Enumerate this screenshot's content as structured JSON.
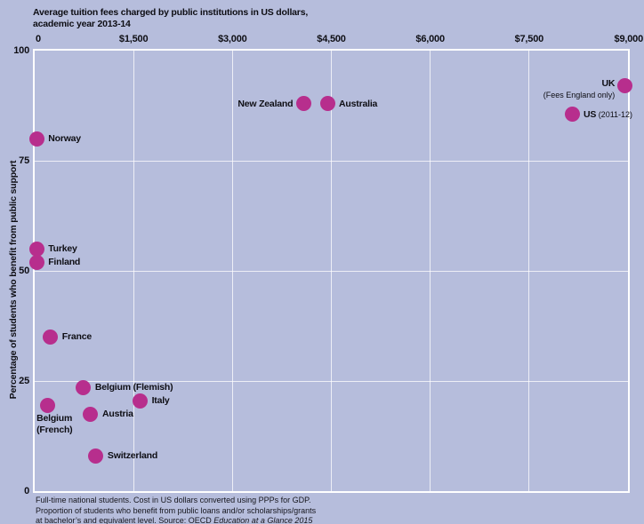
{
  "title": {
    "line1": "Average tuition fees charged by public institutions in US dollars,",
    "line2": "academic year 2013-14"
  },
  "colors": {
    "background": "#b6bddc",
    "dot": "#b72e8d",
    "gridline": "#ffffff",
    "text": "#0e0e14"
  },
  "chart_data": {
    "type": "scatter",
    "title": "Average tuition fees charged by public institutions in US dollars, academic year 2013-14",
    "xlabel": "Average tuition fees charged by public institutions in US dollars",
    "ylabel": "Percentage of students who benefit from public support",
    "xlim": [
      0,
      9000
    ],
    "ylim": [
      0,
      100
    ],
    "grid": true,
    "x_ticks": [
      {
        "value": 0,
        "label": "0",
        "align": "left"
      },
      {
        "value": 1500,
        "label": "$1,500",
        "align": "center"
      },
      {
        "value": 3000,
        "label": "$3,000",
        "align": "center"
      },
      {
        "value": 4500,
        "label": "$4,500",
        "align": "center"
      },
      {
        "value": 6000,
        "label": "$6,000",
        "align": "center"
      },
      {
        "value": 7500,
        "label": "$7,500",
        "align": "center"
      },
      {
        "value": 9000,
        "label": "$9,000",
        "align": "right"
      }
    ],
    "y_ticks": [
      {
        "value": 100,
        "label": "100"
      },
      {
        "value": 75,
        "label": "75"
      },
      {
        "value": 50,
        "label": "50"
      },
      {
        "value": 25,
        "label": "25"
      },
      {
        "value": 0,
        "label": "0"
      }
    ],
    "points": [
      {
        "name": "UK",
        "fees": 8950,
        "support": 92,
        "label_side": "left",
        "sublabel": "(Fees England only)",
        "sublabel_pos": "below"
      },
      {
        "name": "US",
        "fees": 8150,
        "support": 85.5,
        "label_side": "right",
        "sublabel": "(2011-12)",
        "sublabel_pos": "inline"
      },
      {
        "name": "New Zealand",
        "fees": 4080,
        "support": 88,
        "label_side": "left"
      },
      {
        "name": "Australia",
        "fees": 4440,
        "support": 88,
        "label_side": "right"
      },
      {
        "name": "Norway",
        "fees": 30,
        "support": 80,
        "label_side": "right"
      },
      {
        "name": "Turkey",
        "fees": 30,
        "support": 55,
        "label_side": "right"
      },
      {
        "name": "Finland",
        "fees": 30,
        "support": 52,
        "label_side": "right"
      },
      {
        "name": "France",
        "fees": 240,
        "support": 35,
        "label_side": "right"
      },
      {
        "name": "Belgium (Flemish)",
        "fees": 740,
        "support": 23.5,
        "label_side": "right"
      },
      {
        "name": "Italy",
        "fees": 1600,
        "support": 20.5,
        "label_side": "right"
      },
      {
        "name": "Belgium (French)",
        "fees": 190,
        "support": 19.5,
        "label_side": "below",
        "label_lines": [
          "Belgium",
          "(French)"
        ]
      },
      {
        "name": "Austria",
        "fees": 850,
        "support": 17.5,
        "label_side": "right"
      },
      {
        "name": "Switzerland",
        "fees": 930,
        "support": 8,
        "label_side": "right"
      }
    ]
  },
  "footnote": {
    "line1": "Full-time national students. Cost in US dollars converted using PPPs for GDP.",
    "line2": "Proportion of students who benefit from public loans and/or scholarships/grants",
    "line3_prefix": "at bachelor’s and equivalent level. Source: OECD ",
    "line3_italic": "Education at a Glance 2015"
  }
}
